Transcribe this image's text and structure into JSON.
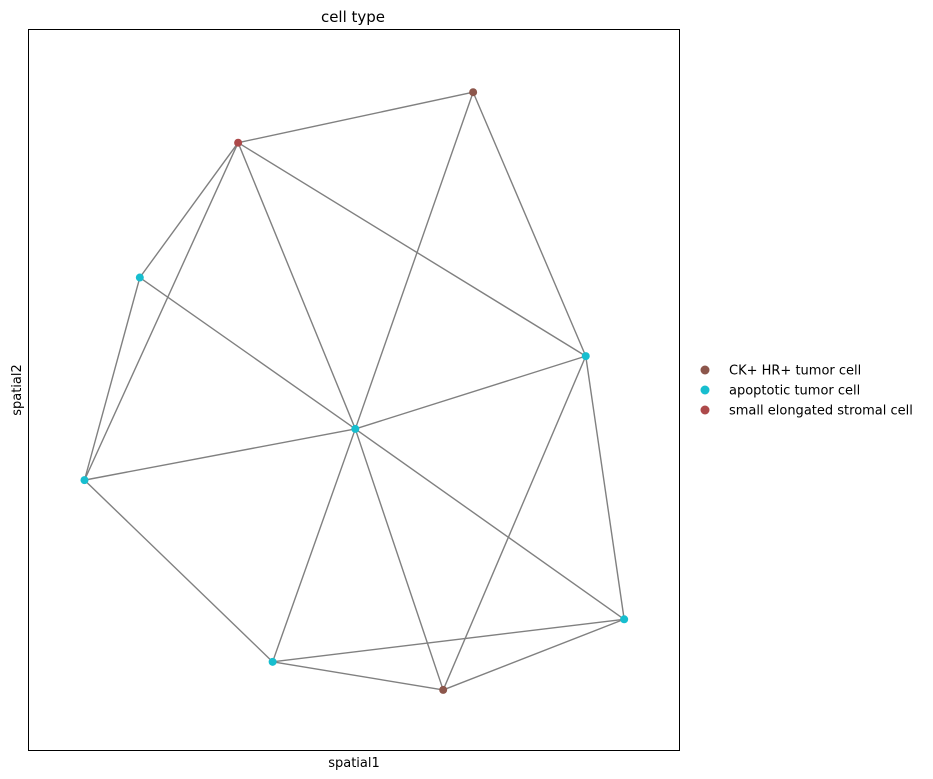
{
  "chart_data": {
    "type": "scatter",
    "title": "cell type",
    "xlabel": "spatial1",
    "ylabel": "spatial2",
    "xlim": [
      0,
      100
    ],
    "ylim": [
      0,
      100
    ],
    "grid": false,
    "ticks": false,
    "legend_placement": "right",
    "categories": [
      {
        "name": "CK+ HR+ tumor cell",
        "color": "#8c564b"
      },
      {
        "name": "apoptotic tumor cell",
        "color": "#17becf"
      },
      {
        "name": "small elongated stromal cell",
        "color": "#ad494a"
      }
    ],
    "points": [
      {
        "id": 0,
        "x": 68.3,
        "y": 91.3,
        "category": 0
      },
      {
        "id": 1,
        "x": 32.2,
        "y": 84.3,
        "category": 2
      },
      {
        "id": 2,
        "x": 17.1,
        "y": 65.6,
        "category": 1
      },
      {
        "id": 3,
        "x": 85.6,
        "y": 54.7,
        "category": 1
      },
      {
        "id": 4,
        "x": 50.2,
        "y": 44.6,
        "category": 1
      },
      {
        "id": 5,
        "x": 8.6,
        "y": 37.5,
        "category": 1
      },
      {
        "id": 6,
        "x": 91.5,
        "y": 18.2,
        "category": 1
      },
      {
        "id": 7,
        "x": 37.5,
        "y": 12.3,
        "category": 1
      },
      {
        "id": 8,
        "x": 63.7,
        "y": 8.4,
        "category": 0
      }
    ],
    "edges": [
      [
        0,
        1
      ],
      [
        0,
        3
      ],
      [
        0,
        4
      ],
      [
        1,
        2
      ],
      [
        1,
        4
      ],
      [
        1,
        5
      ],
      [
        1,
        3
      ],
      [
        2,
        5
      ],
      [
        2,
        4
      ],
      [
        3,
        4
      ],
      [
        3,
        6
      ],
      [
        3,
        8
      ],
      [
        4,
        5
      ],
      [
        4,
        6
      ],
      [
        4,
        7
      ],
      [
        4,
        8
      ],
      [
        5,
        7
      ],
      [
        6,
        7
      ],
      [
        6,
        8
      ],
      [
        7,
        8
      ]
    ],
    "edge_color": "#808080"
  }
}
